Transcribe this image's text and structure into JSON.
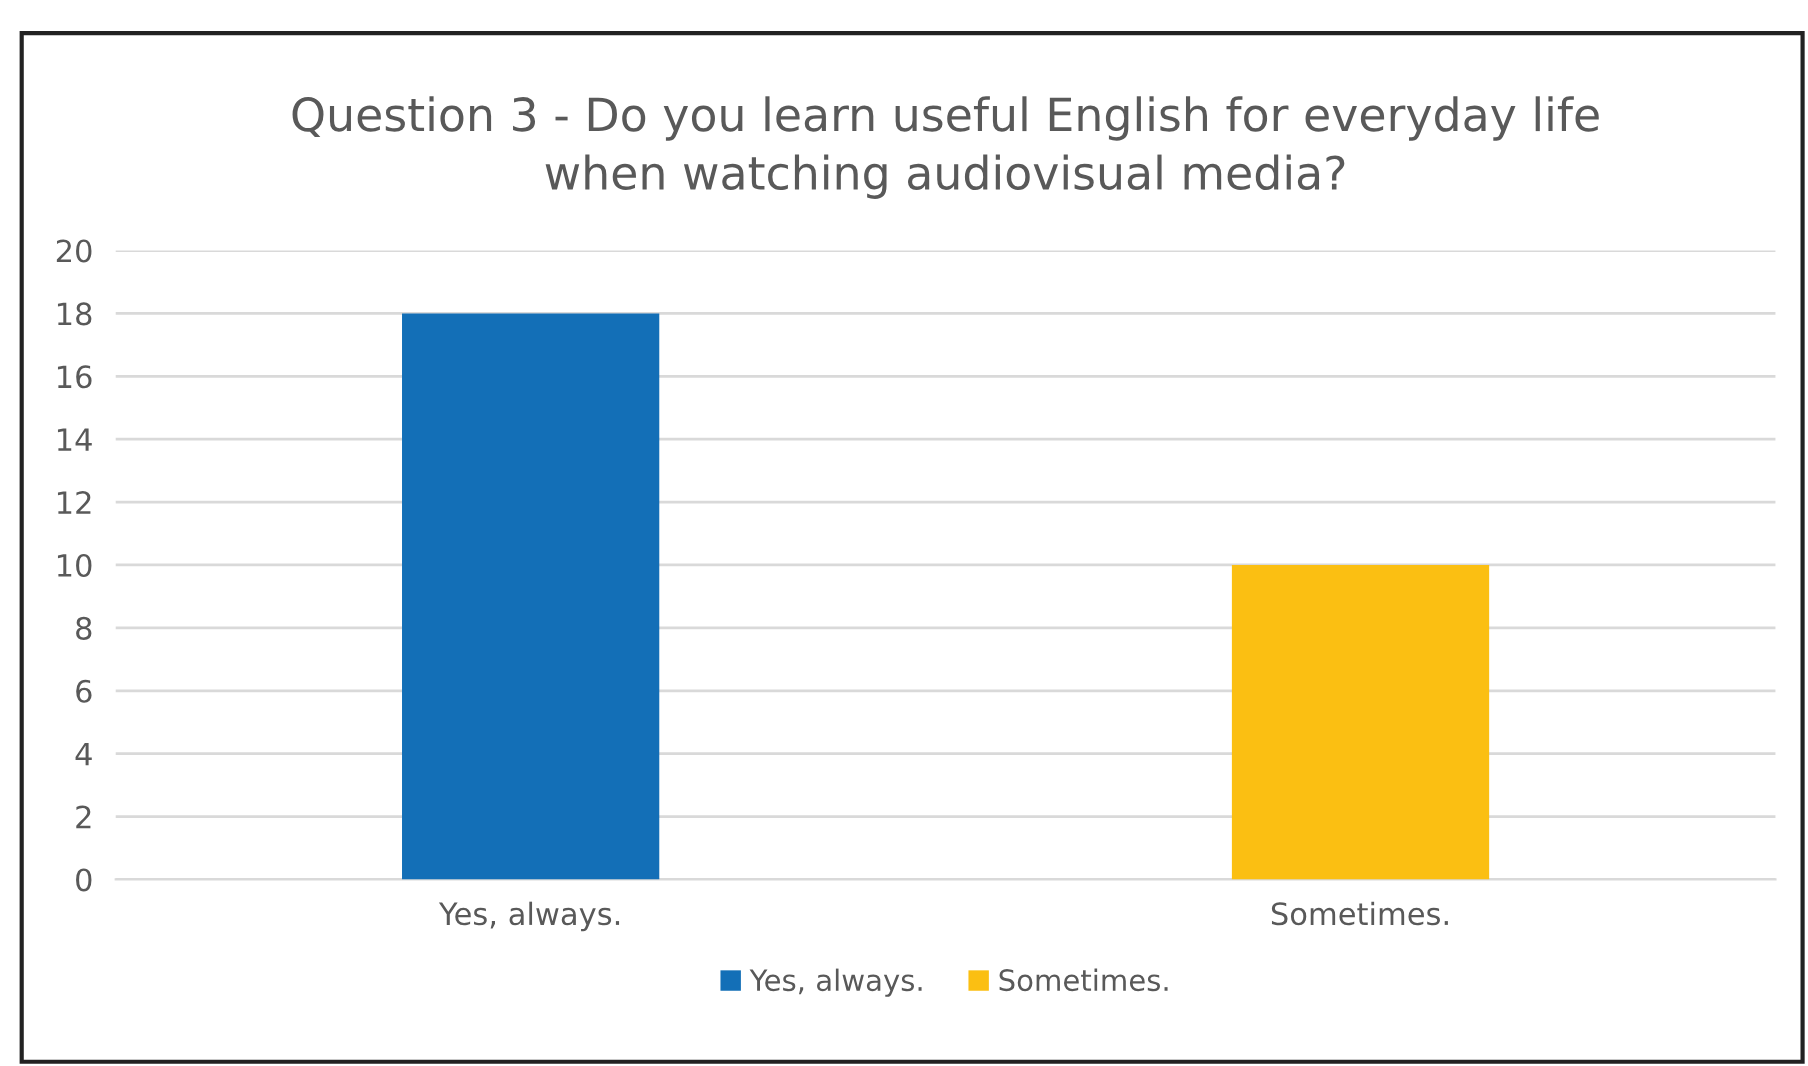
{
  "chart_data": {
    "type": "bar",
    "title": "Question 3 - Do you learn useful English for everyday life\nwhen watching audiovisual media?",
    "categories": [
      "Yes, always.",
      "Sometimes."
    ],
    "series": [
      {
        "name": "Yes, always.",
        "color": "#136fb7",
        "values": [
          18,
          null
        ]
      },
      {
        "name": "Sometimes.",
        "color": "#fbbf12",
        "values": [
          null,
          10
        ]
      }
    ],
    "ylim": [
      0,
      20
    ],
    "yticks": [
      0,
      2,
      4,
      6,
      8,
      10,
      12,
      14,
      16,
      18,
      20
    ],
    "grid": "y",
    "legend": "bottom"
  }
}
